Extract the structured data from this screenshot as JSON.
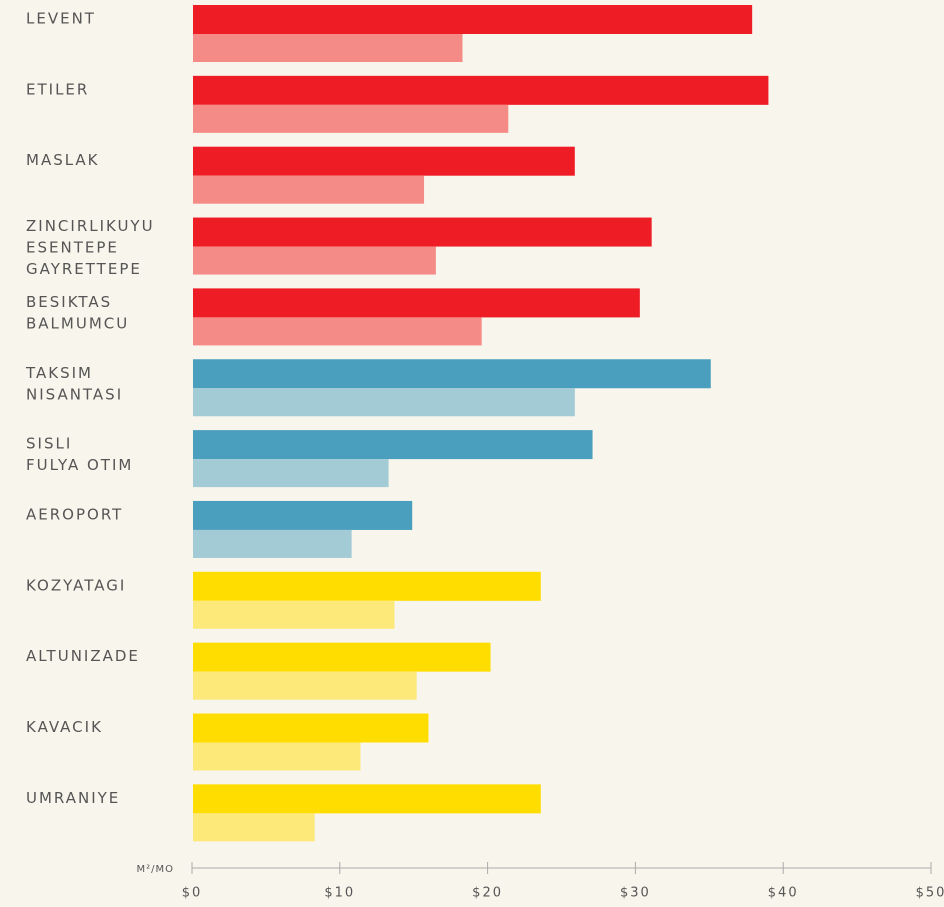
{
  "chart_data": {
    "type": "hbar",
    "categories": [
      [
        "LEVENT"
      ],
      [
        "ETILER"
      ],
      [
        "MASLAK"
      ],
      [
        "ZINCIRLIKUYU",
        "ESENTEPE",
        "GAYRETTEPE"
      ],
      [
        "BESIKTAS",
        "BALMUMCU"
      ],
      [
        "TAKSIM",
        "NISANTASI"
      ],
      [
        "SISLI",
        "FULYA  OTIM"
      ],
      [
        "AEROPORT"
      ],
      [
        "KOZYATAGI"
      ],
      [
        "ALTUNIZADE"
      ],
      [
        "KAVACIK"
      ],
      [
        "UMRANIYE"
      ]
    ],
    "series": [
      {
        "colors": [
          "#ee1c25",
          "#ee1c25",
          "#ee1c25",
          "#ee1c25",
          "#ee1c25",
          "#4a9fbf",
          "#4a9fbf",
          "#4a9fbf",
          "#ffdd00",
          "#ffdd00",
          "#ffdd00",
          "#ffdd00"
        ],
        "values": [
          37.9,
          39.0,
          25.9,
          31.1,
          30.3,
          35.1,
          27.1,
          14.9,
          23.6,
          20.2,
          16.0,
          23.6
        ]
      },
      {
        "colors": [
          "#f58b87",
          "#f58b87",
          "#f58b87",
          "#f58b87",
          "#f58b87",
          "#a2cbd5",
          "#a2cbd5",
          "#a2cbd5",
          "#fce97a",
          "#fce97a",
          "#fce97a",
          "#fce97a"
        ],
        "values": [
          18.3,
          21.4,
          15.7,
          16.5,
          19.6,
          25.9,
          13.3,
          10.8,
          13.7,
          15.2,
          11.4,
          8.3
        ]
      }
    ],
    "x_label": "M²/MO",
    "xlim": [
      0,
      50
    ],
    "xticks": [
      {
        "value": 0,
        "label": "$0"
      },
      {
        "value": 10,
        "label": "$10"
      },
      {
        "value": 20,
        "label": "$20"
      },
      {
        "value": 30,
        "label": "$30"
      },
      {
        "value": 40,
        "label": "$40"
      },
      {
        "value": 50,
        "label": "$50"
      }
    ]
  }
}
